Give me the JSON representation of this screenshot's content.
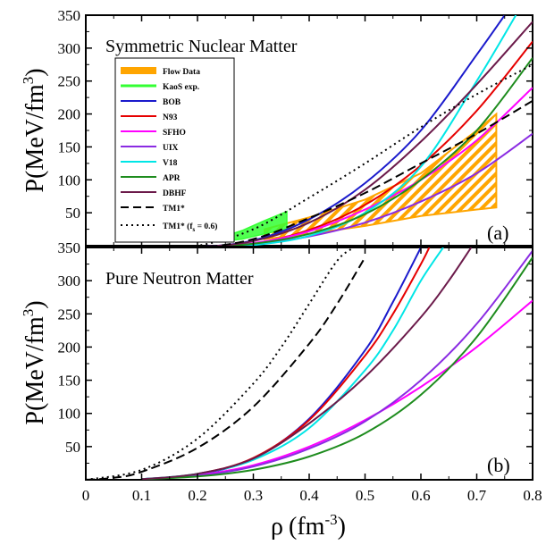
{
  "colors": {
    "flow": "#ffa500",
    "kaos": "#33ff33",
    "BOB": "#1a1acc",
    "N93": "#e60000",
    "SFHO": "#ff00ff",
    "UIX": "#8a2be2",
    "V18": "#00e6e6",
    "APR": "#1e8c1e",
    "DBHF": "#6b1a4a",
    "TM1": "#000000"
  },
  "x_axis": {
    "title_symbol": "ρ",
    "title_unit": "(fm",
    "title_exp": "-3",
    "title_close": ")",
    "ticks": [
      "0",
      "0.1",
      "0.2",
      "0.3",
      "0.4",
      "0.5",
      "0.6",
      "0.7",
      "0.8"
    ]
  },
  "y_axis": {
    "title_main": "P(MeV/fm",
    "title_exp": "3",
    "title_close": ")",
    "ticks_a": [
      "50",
      "100",
      "150",
      "200",
      "250",
      "300",
      "350",
      "350"
    ],
    "ticks_b": [
      "50",
      "100",
      "150",
      "200",
      "250",
      "300",
      "350"
    ]
  },
  "panel_a": {
    "title": "Symmetric Nuclear Matter",
    "tag": "(a)"
  },
  "panel_b": {
    "title": "Pure Neutron Matter",
    "tag": "(b)"
  },
  "legend": {
    "flow": "Flow Data",
    "kaos": "KaoS exp.",
    "BOB": "BOB",
    "N93": "N93",
    "SFHO": "SFHO",
    "UIX": "UIX",
    "V18": "V18",
    "APR": "APR",
    "DBHF": "DBHF",
    "TM1": "TM1*",
    "TM1fs_pre": "TM1* (f",
    "TM1fs_sub": "s",
    "TM1fs_post": " = 0.6)"
  },
  "chart_data": [
    {
      "type": "line",
      "panel": "a",
      "title": "Symmetric Nuclear Matter",
      "xlabel": "ρ (fm-3)",
      "ylabel": "P(MeV/fm3)",
      "xlim": [
        0,
        0.8
      ],
      "ylim": [
        0,
        350
      ],
      "bands": [
        {
          "name": "Flow Data",
          "x": [
            0.32,
            0.4,
            0.5,
            0.6,
            0.7,
            0.735
          ],
          "upper": [
            25,
            43,
            70,
            110,
            175,
            200
          ],
          "lower": [
            10,
            18,
            30,
            45,
            55,
            58
          ]
        },
        {
          "name": "KaoS exp.",
          "x": [
            0.24,
            0.28,
            0.32,
            0.36
          ],
          "upper": [
            12,
            23,
            38,
            52
          ],
          "lower": [
            6,
            10,
            18,
            25
          ]
        }
      ],
      "series": [
        {
          "name": "BOB",
          "x": [
            0.1,
            0.2,
            0.3,
            0.4,
            0.5,
            0.6,
            0.7,
            0.75
          ],
          "y": [
            -2,
            -2,
            8,
            40,
            95,
            175,
            290,
            350
          ],
          "style": "solid"
        },
        {
          "name": "N93",
          "x": [
            0.1,
            0.2,
            0.3,
            0.4,
            0.5,
            0.6,
            0.7,
            0.8
          ],
          "y": [
            -2,
            -3,
            3,
            24,
            62,
            122,
            205,
            310
          ],
          "style": "solid"
        },
        {
          "name": "SFHO",
          "x": [
            0.1,
            0.2,
            0.3,
            0.4,
            0.5,
            0.6,
            0.7,
            0.8
          ],
          "y": [
            -2,
            -2,
            4,
            22,
            55,
            100,
            160,
            240
          ],
          "style": "solid"
        },
        {
          "name": "UIX",
          "x": [
            0.1,
            0.2,
            0.3,
            0.4,
            0.5,
            0.6,
            0.7,
            0.8
          ],
          "y": [
            -2,
            -2,
            2,
            14,
            35,
            67,
            110,
            170
          ],
          "style": "solid"
        },
        {
          "name": "V18",
          "x": [
            0.1,
            0.2,
            0.3,
            0.4,
            0.5,
            0.6,
            0.7,
            0.77
          ],
          "y": [
            -2,
            -3,
            1,
            15,
            50,
            120,
            250,
            350
          ],
          "style": "solid"
        },
        {
          "name": "APR",
          "x": [
            0.1,
            0.2,
            0.3,
            0.4,
            0.5,
            0.6,
            0.7,
            0.8
          ],
          "y": [
            -2,
            -2,
            3,
            18,
            48,
            100,
            175,
            285
          ],
          "style": "solid"
        },
        {
          "name": "DBHF",
          "x": [
            0.1,
            0.2,
            0.3,
            0.4,
            0.5,
            0.6,
            0.7,
            0.8
          ],
          "y": [
            -2,
            -2,
            7,
            35,
            85,
            158,
            245,
            340
          ],
          "style": "solid"
        },
        {
          "name": "TM1*",
          "x": [
            0.1,
            0.2,
            0.3,
            0.4,
            0.5,
            0.6,
            0.7,
            0.8
          ],
          "y": [
            -3,
            -3,
            10,
            42,
            80,
            125,
            170,
            220
          ],
          "style": "dashed"
        },
        {
          "name": "TM1* (fs = 0.6)",
          "x": [
            0.1,
            0.2,
            0.3,
            0.4,
            0.5,
            0.6,
            0.7,
            0.8
          ],
          "y": [
            -3,
            0,
            25,
            73,
            125,
            180,
            230,
            275
          ],
          "style": "dotted"
        }
      ]
    },
    {
      "type": "line",
      "panel": "b",
      "title": "Pure Neutron Matter",
      "xlabel": "ρ (fm-3)",
      "ylabel": "P(MeV/fm3)",
      "xlim": [
        0,
        0.8
      ],
      "ylim": [
        0,
        350
      ],
      "series": [
        {
          "name": "BOB",
          "x": [
            0.1,
            0.2,
            0.3,
            0.4,
            0.5,
            0.55,
            0.6
          ],
          "y": [
            1,
            8,
            32,
            92,
            195,
            268,
            350
          ],
          "style": "solid"
        },
        {
          "name": "N93",
          "x": [
            0.1,
            0.2,
            0.3,
            0.4,
            0.5,
            0.55,
            0.6,
            0.615
          ],
          "y": [
            1,
            9,
            33,
            90,
            187,
            250,
            325,
            350
          ],
          "style": "solid"
        },
        {
          "name": "SFHO",
          "x": [
            0.1,
            0.2,
            0.3,
            0.4,
            0.5,
            0.6,
            0.7,
            0.8
          ],
          "y": [
            1,
            7,
            22,
            50,
            90,
            140,
            200,
            270
          ],
          "style": "solid"
        },
        {
          "name": "UIX",
          "x": [
            0.1,
            0.2,
            0.3,
            0.4,
            0.5,
            0.6,
            0.7,
            0.8
          ],
          "y": [
            1,
            6,
            20,
            47,
            88,
            150,
            235,
            345
          ],
          "style": "solid"
        },
        {
          "name": "V18",
          "x": [
            0.1,
            0.2,
            0.3,
            0.4,
            0.5,
            0.55,
            0.6,
            0.64
          ],
          "y": [
            1,
            9,
            30,
            78,
            165,
            225,
            300,
            350
          ],
          "style": "solid"
        },
        {
          "name": "APR",
          "x": [
            0.1,
            0.2,
            0.3,
            0.4,
            0.5,
            0.6,
            0.7,
            0.8
          ],
          "y": [
            1,
            5,
            15,
            35,
            70,
            128,
            215,
            335
          ],
          "style": "solid"
        },
        {
          "name": "DBHF",
          "x": [
            0.1,
            0.2,
            0.3,
            0.4,
            0.5,
            0.6,
            0.65,
            0.69
          ],
          "y": [
            1,
            9,
            32,
            85,
            155,
            245,
            300,
            350
          ],
          "style": "solid"
        },
        {
          "name": "TM1*",
          "x": [
            0.0,
            0.05,
            0.1,
            0.2,
            0.3,
            0.4,
            0.45,
            0.5
          ],
          "y": [
            0,
            3,
            12,
            48,
            110,
            205,
            265,
            335
          ],
          "style": "dashed"
        },
        {
          "name": "TM1* (fs = 0.6)",
          "x": [
            0.0,
            0.1,
            0.2,
            0.3,
            0.35,
            0.4,
            0.45,
            0.48
          ],
          "y": [
            0,
            15,
            62,
            145,
            200,
            265,
            330,
            350
          ],
          "style": "dotted"
        }
      ]
    }
  ]
}
